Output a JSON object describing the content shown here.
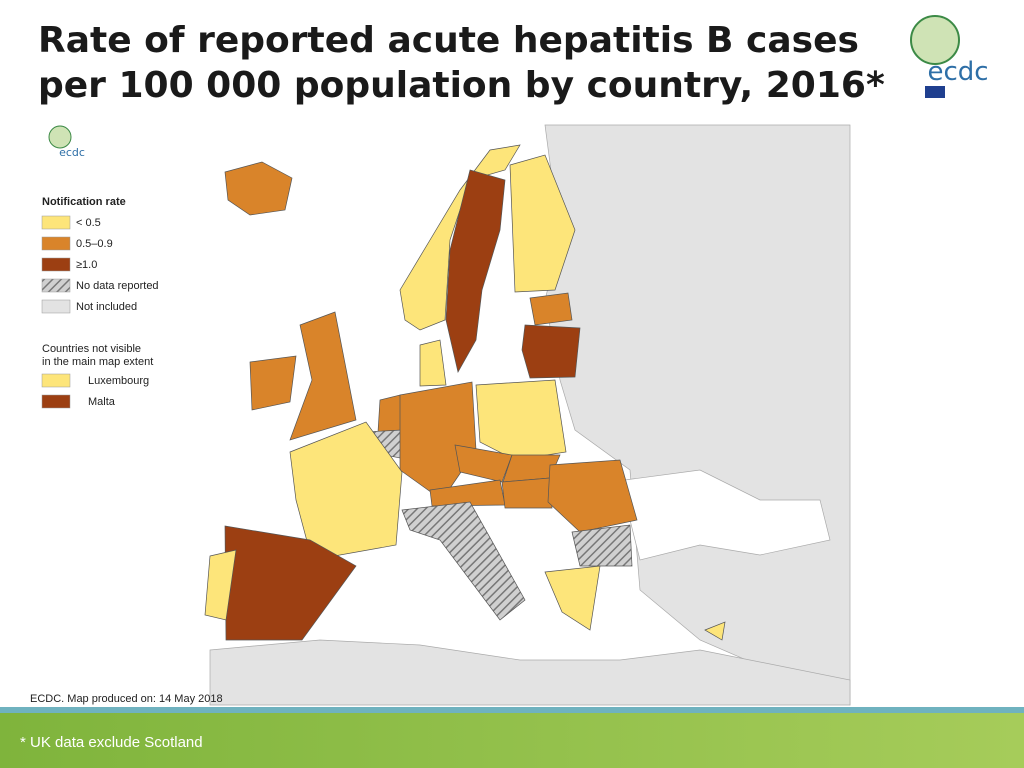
{
  "header": {
    "title_lines": [
      "Rate of reported acute hepatitis B cases",
      "per 100 000 population by country, 2016*"
    ],
    "logo": "ecdc"
  },
  "legend": {
    "title": "Notification rate",
    "items": [
      {
        "label": "< 0.5",
        "color": "#fde57a"
      },
      {
        "label": "0.5–0.9",
        "color": "#d9842a"
      },
      {
        "label": "≥1.0",
        "color": "#9c3f12"
      },
      {
        "label": "No data reported",
        "color": "hatch"
      },
      {
        "label": "Not included",
        "color": "#e3e3e3"
      }
    ],
    "not_visible_title": [
      "Countries not visible",
      "in the main map extent"
    ],
    "not_visible": [
      {
        "label": "Luxembourg",
        "color": "#fde57a"
      },
      {
        "label": "Malta",
        "color": "#9c3f12"
      }
    ]
  },
  "map_credit": "ECDC. Map produced on: 14 May 2018",
  "footnote": "* UK data exclude Scotland"
}
